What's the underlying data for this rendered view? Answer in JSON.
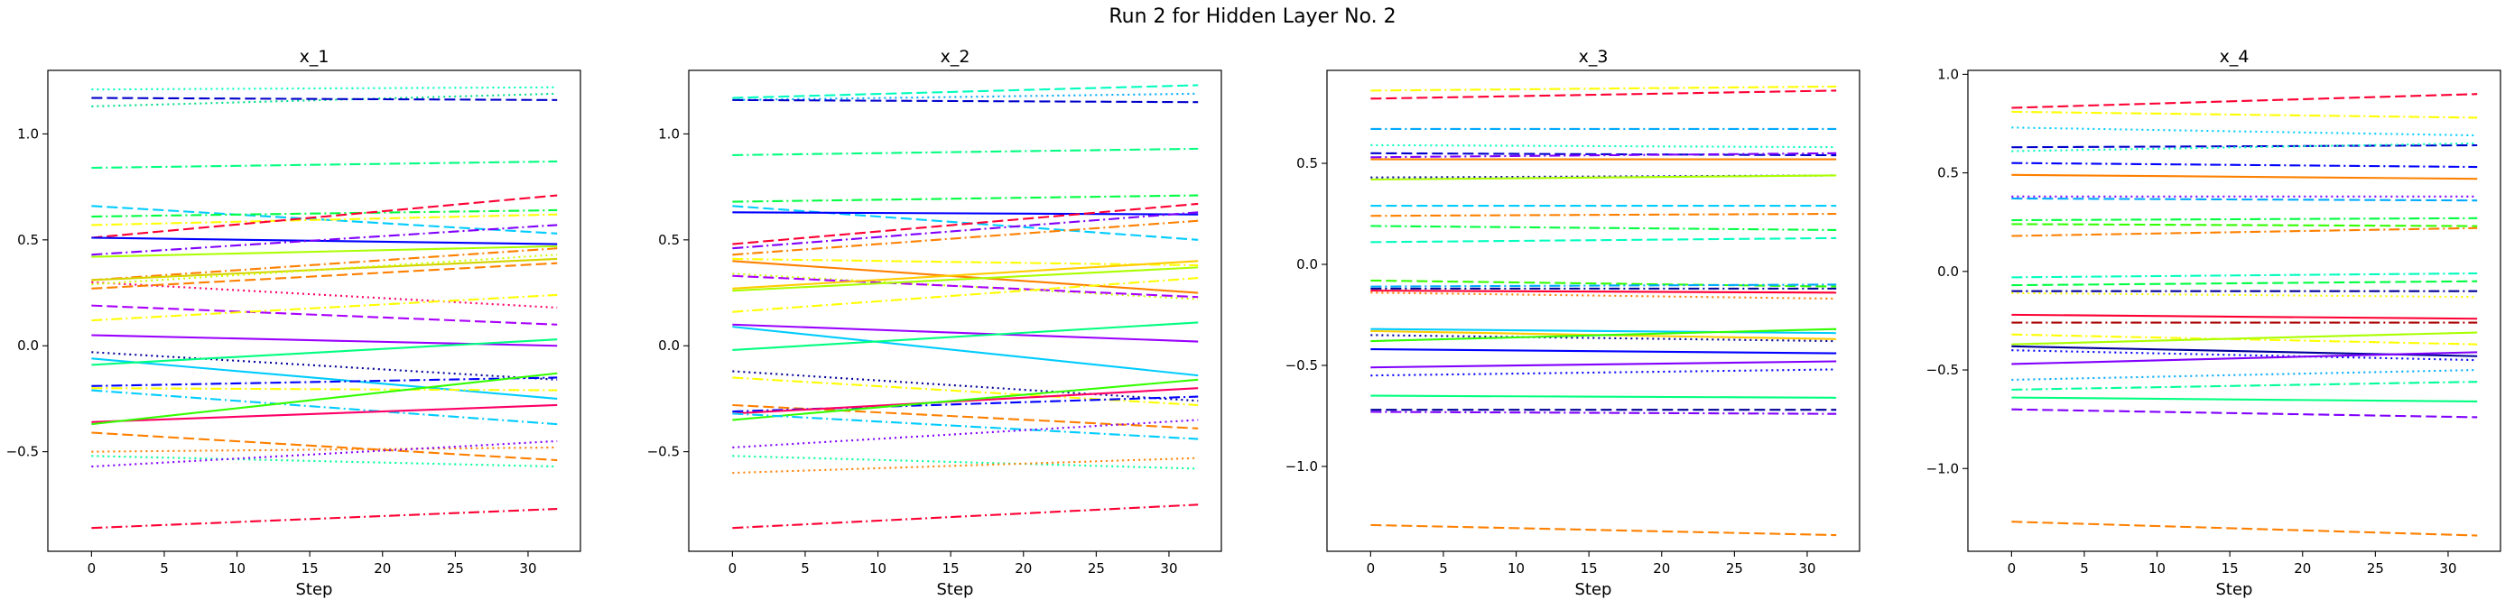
{
  "suptitle": "Run 2 for Hidden Layer No. 2",
  "chart_data": [
    {
      "type": "line",
      "title": "x_1",
      "xlabel": "Step",
      "ylabel": "",
      "xlim": [
        -3,
        33.6
      ],
      "ylim": [
        -0.97,
        1.3
      ],
      "xticks": [
        0,
        5,
        10,
        15,
        20,
        25,
        30
      ],
      "yticks": [
        -0.5,
        0.0,
        0.5,
        1.0
      ],
      "ytick_labels": [
        "−0.5",
        "0.0",
        "0.5",
        "1.0"
      ],
      "grid": false,
      "x_range": [
        0,
        32
      ],
      "series": [
        {
          "color": "#00ffbf",
          "dash": "dot",
          "start": 1.21,
          "end": 1.22
        },
        {
          "color": "#00dd88",
          "dash": "dot",
          "start": 1.13,
          "end": 1.19
        },
        {
          "color": "#0000cc",
          "dash": "dash",
          "start": 1.17,
          "end": 1.16
        },
        {
          "color": "#00ff7f",
          "dash": "dashdot",
          "start": 0.84,
          "end": 0.87
        },
        {
          "color": "#00ccff",
          "dash": "dash",
          "start": 0.66,
          "end": 0.53
        },
        {
          "color": "#00ff40",
          "dash": "dashdot",
          "start": 0.61,
          "end": 0.64
        },
        {
          "color": "#ffff00",
          "dash": "dashdot",
          "start": 0.57,
          "end": 0.62
        },
        {
          "color": "#ff0033",
          "dash": "dash",
          "start": 0.51,
          "end": 0.71
        },
        {
          "color": "#0000ff",
          "dash": "solid",
          "start": 0.51,
          "end": 0.48
        },
        {
          "color": "#8000ff",
          "dash": "dashdot",
          "start": 0.43,
          "end": 0.57
        },
        {
          "color": "#aaff00",
          "dash": "solid",
          "start": 0.42,
          "end": 0.47
        },
        {
          "color": "#ff8000",
          "dash": "dashdot",
          "start": 0.31,
          "end": 0.46
        },
        {
          "color": "#d4d400",
          "dash": "solid",
          "start": 0.31,
          "end": 0.41
        },
        {
          "color": "#ff0066",
          "dash": "dot",
          "start": 0.3,
          "end": 0.18
        },
        {
          "color": "#ccff00",
          "dash": "dot",
          "start": 0.29,
          "end": 0.43
        },
        {
          "color": "#ff8000",
          "dash": "dash",
          "start": 0.27,
          "end": 0.39
        },
        {
          "color": "#aa00ff",
          "dash": "dash",
          "start": 0.19,
          "end": 0.1
        },
        {
          "color": "#ffff00",
          "dash": "dashdot",
          "start": 0.12,
          "end": 0.24
        },
        {
          "color": "#9900ff",
          "dash": "solid",
          "start": 0.05,
          "end": 0.0
        },
        {
          "color": "#000099",
          "dash": "dot",
          "start": -0.03,
          "end": -0.16
        },
        {
          "color": "#00ccff",
          "dash": "solid",
          "start": -0.06,
          "end": -0.25
        },
        {
          "color": "#00ff7f",
          "dash": "solid",
          "start": -0.09,
          "end": 0.03
        },
        {
          "color": "#0000ff",
          "dash": "dashdot",
          "start": -0.19,
          "end": -0.15
        },
        {
          "color": "#ffff00",
          "dash": "dashdot",
          "start": -0.2,
          "end": -0.21
        },
        {
          "color": "#00ccff",
          "dash": "dashdot",
          "start": -0.21,
          "end": -0.37
        },
        {
          "color": "#ff0066",
          "dash": "solid",
          "start": -0.36,
          "end": -0.28
        },
        {
          "color": "#33ff00",
          "dash": "solid",
          "start": -0.37,
          "end": -0.13
        },
        {
          "color": "#ff8000",
          "dash": "dash",
          "start": -0.41,
          "end": -0.54
        },
        {
          "color": "#ff8000",
          "dash": "dot",
          "start": -0.5,
          "end": -0.48
        },
        {
          "color": "#00ff99",
          "dash": "dot",
          "start": -0.52,
          "end": -0.57
        },
        {
          "color": "#8000ff",
          "dash": "dot",
          "start": -0.57,
          "end": -0.45
        },
        {
          "color": "#ff0033",
          "dash": "dashdot",
          "start": -0.86,
          "end": -0.77
        }
      ]
    },
    {
      "type": "line",
      "title": "x_2",
      "xlabel": "Step",
      "ylabel": "",
      "xlim": [
        -3,
        33.6
      ],
      "ylim": [
        -0.97,
        1.3
      ],
      "xticks": [
        0,
        5,
        10,
        15,
        20,
        25,
        30
      ],
      "yticks": [
        -0.5,
        0.0,
        0.5,
        1.0
      ],
      "ytick_labels": [
        "−0.5",
        "0.0",
        "0.5",
        "1.0"
      ],
      "grid": false,
      "x_range": [
        0,
        32
      ],
      "series": [
        {
          "color": "#00ffbf",
          "dash": "dash",
          "start": 1.17,
          "end": 1.23
        },
        {
          "color": "#00aaff",
          "dash": "dot",
          "start": 1.16,
          "end": 1.19
        },
        {
          "color": "#0000cc",
          "dash": "dash",
          "start": 1.16,
          "end": 1.15
        },
        {
          "color": "#00ff7f",
          "dash": "dashdot",
          "start": 0.9,
          "end": 0.93
        },
        {
          "color": "#00ff40",
          "dash": "dashdot",
          "start": 0.68,
          "end": 0.71
        },
        {
          "color": "#00ccff",
          "dash": "dash",
          "start": 0.66,
          "end": 0.5
        },
        {
          "color": "#0000ff",
          "dash": "solid",
          "start": 0.63,
          "end": 0.62
        },
        {
          "color": "#ff0033",
          "dash": "dash",
          "start": 0.48,
          "end": 0.67
        },
        {
          "color": "#8000ff",
          "dash": "dashdot",
          "start": 0.46,
          "end": 0.63
        },
        {
          "color": "#ff8000",
          "dash": "dashdot",
          "start": 0.43,
          "end": 0.59
        },
        {
          "color": "#ffff00",
          "dash": "dashdot",
          "start": 0.41,
          "end": 0.38
        },
        {
          "color": "#ff8000",
          "dash": "solid",
          "start": 0.4,
          "end": 0.25
        },
        {
          "color": "#ccff00",
          "dash": "dot",
          "start": 0.34,
          "end": 0.22
        },
        {
          "color": "#aa00ff",
          "dash": "dash",
          "start": 0.33,
          "end": 0.23
        },
        {
          "color": "#ffcc00",
          "dash": "solid",
          "start": 0.27,
          "end": 0.4
        },
        {
          "color": "#aaff00",
          "dash": "solid",
          "start": 0.26,
          "end": 0.37
        },
        {
          "color": "#ffff00",
          "dash": "dashdot",
          "start": 0.16,
          "end": 0.32
        },
        {
          "color": "#9900ff",
          "dash": "solid",
          "start": 0.1,
          "end": 0.02
        },
        {
          "color": "#00ccff",
          "dash": "solid",
          "start": 0.09,
          "end": -0.14
        },
        {
          "color": "#00ff7f",
          "dash": "solid",
          "start": -0.02,
          "end": 0.11
        },
        {
          "color": "#000099",
          "dash": "dot",
          "start": -0.12,
          "end": -0.26
        },
        {
          "color": "#ffff00",
          "dash": "dashdot",
          "start": -0.15,
          "end": -0.28
        },
        {
          "color": "#ff8000",
          "dash": "dash",
          "start": -0.28,
          "end": -0.39
        },
        {
          "color": "#0000ff",
          "dash": "dashdot",
          "start": -0.31,
          "end": -0.24
        },
        {
          "color": "#ff0066",
          "dash": "solid",
          "start": -0.32,
          "end": -0.2
        },
        {
          "color": "#33ff00",
          "dash": "solid",
          "start": -0.35,
          "end": -0.16
        },
        {
          "color": "#00ccff",
          "dash": "dashdot",
          "start": -0.32,
          "end": -0.44
        },
        {
          "color": "#8000ff",
          "dash": "dot",
          "start": -0.48,
          "end": -0.35
        },
        {
          "color": "#00ff99",
          "dash": "dot",
          "start": -0.52,
          "end": -0.58
        },
        {
          "color": "#ff8000",
          "dash": "dot",
          "start": -0.6,
          "end": -0.53
        },
        {
          "color": "#ff0033",
          "dash": "dashdot",
          "start": -0.86,
          "end": -0.75
        }
      ]
    },
    {
      "type": "line",
      "title": "x_3",
      "xlabel": "Step",
      "ylabel": "",
      "xlim": [
        -3,
        33.6
      ],
      "ylim": [
        -1.42,
        0.96
      ],
      "xticks": [
        0,
        5,
        10,
        15,
        20,
        25,
        30
      ],
      "yticks": [
        -1.0,
        -0.5,
        0.0,
        0.5
      ],
      "ytick_labels": [
        "−1.0",
        "−0.5",
        "0.0",
        "0.5"
      ],
      "grid": false,
      "x_range": [
        0,
        32
      ],
      "series": [
        {
          "color": "#ffff00",
          "dash": "dashdot",
          "start": 0.86,
          "end": 0.88
        },
        {
          "color": "#ff0033",
          "dash": "dash",
          "start": 0.82,
          "end": 0.86
        },
        {
          "color": "#00aaff",
          "dash": "dashdot",
          "start": 0.67,
          "end": 0.67
        },
        {
          "color": "#00ffbf",
          "dash": "dot",
          "start": 0.59,
          "end": 0.58
        },
        {
          "color": "#0000cc",
          "dash": "dash",
          "start": 0.55,
          "end": 0.54
        },
        {
          "color": "#8000ff",
          "dash": "dashdot",
          "start": 0.53,
          "end": 0.55
        },
        {
          "color": "#ff8000",
          "dash": "solid",
          "start": 0.52,
          "end": 0.52
        },
        {
          "color": "#000099",
          "dash": "dot",
          "start": 0.43,
          "end": 0.44
        },
        {
          "color": "#aaff00",
          "dash": "solid",
          "start": 0.42,
          "end": 0.44
        },
        {
          "color": "#00ccff",
          "dash": "dash",
          "start": 0.29,
          "end": 0.29
        },
        {
          "color": "#ff8000",
          "dash": "dashdot",
          "start": 0.24,
          "end": 0.25
        },
        {
          "color": "#00ff40",
          "dash": "dashdot",
          "start": 0.19,
          "end": 0.17
        },
        {
          "color": "#00ffbf",
          "dash": "dash",
          "start": 0.11,
          "end": 0.13
        },
        {
          "color": "#33ff00",
          "dash": "dash",
          "start": -0.08,
          "end": -0.11
        },
        {
          "color": "#00aaff",
          "dash": "dashdot",
          "start": -0.11,
          "end": -0.1
        },
        {
          "color": "#000099",
          "dash": "dashdot",
          "start": -0.12,
          "end": -0.12
        },
        {
          "color": "#ff0033",
          "dash": "solid",
          "start": -0.13,
          "end": -0.14
        },
        {
          "color": "#ff8000",
          "dash": "dot",
          "start": -0.14,
          "end": -0.17
        },
        {
          "color": "#00ccff",
          "dash": "solid",
          "start": -0.32,
          "end": -0.34
        },
        {
          "color": "#ffcc00",
          "dash": "solid",
          "start": -0.33,
          "end": -0.37
        },
        {
          "color": "#000099",
          "dash": "dot",
          "start": -0.35,
          "end": -0.38
        },
        {
          "color": "#33ff00",
          "dash": "solid",
          "start": -0.38,
          "end": -0.32
        },
        {
          "color": "#0000ff",
          "dash": "solid",
          "start": -0.42,
          "end": -0.44
        },
        {
          "color": "#8000ff",
          "dash": "solid",
          "start": -0.51,
          "end": -0.48
        },
        {
          "color": "#0000ff",
          "dash": "dot",
          "start": -0.55,
          "end": -0.52
        },
        {
          "color": "#00ff7f",
          "dash": "solid",
          "start": -0.65,
          "end": -0.66
        },
        {
          "color": "#000099",
          "dash": "dash",
          "start": -0.72,
          "end": -0.72
        },
        {
          "color": "#8000ff",
          "dash": "dashdot",
          "start": -0.73,
          "end": -0.74
        },
        {
          "color": "#ff8000",
          "dash": "dash",
          "start": -1.29,
          "end": -1.34
        }
      ]
    },
    {
      "type": "line",
      "title": "x_4",
      "xlabel": "Step",
      "ylabel": "",
      "xlim": [
        -3,
        33.6
      ],
      "ylim": [
        -1.42,
        1.02
      ],
      "xticks": [
        0,
        5,
        10,
        15,
        20,
        25,
        30
      ],
      "yticks": [
        -1.0,
        -0.5,
        0.0,
        0.5,
        1.0
      ],
      "ytick_labels": [
        "−1.0",
        "−0.5",
        "0.0",
        "0.5",
        "1.0"
      ],
      "grid": false,
      "x_range": [
        0,
        32
      ],
      "series": [
        {
          "color": "#ff0033",
          "dash": "dash",
          "start": 0.83,
          "end": 0.9
        },
        {
          "color": "#ffff00",
          "dash": "dashdot",
          "start": 0.81,
          "end": 0.78
        },
        {
          "color": "#00ccff",
          "dash": "dot",
          "start": 0.73,
          "end": 0.69
        },
        {
          "color": "#0000cc",
          "dash": "dash",
          "start": 0.63,
          "end": 0.64
        },
        {
          "color": "#00ffbf",
          "dash": "dot",
          "start": 0.61,
          "end": 0.65
        },
        {
          "color": "#0000ff",
          "dash": "dashdot",
          "start": 0.55,
          "end": 0.53
        },
        {
          "color": "#ff8000",
          "dash": "solid",
          "start": 0.49,
          "end": 0.47
        },
        {
          "color": "#00aaff",
          "dash": "dash",
          "start": 0.37,
          "end": 0.36
        },
        {
          "color": "#8000ff",
          "dash": "dot",
          "start": 0.38,
          "end": 0.38
        },
        {
          "color": "#00ff40",
          "dash": "dashdot",
          "start": 0.26,
          "end": 0.27
        },
        {
          "color": "#33ff00",
          "dash": "dash",
          "start": 0.24,
          "end": 0.23
        },
        {
          "color": "#ff8000",
          "dash": "dashdot",
          "start": 0.18,
          "end": 0.22
        },
        {
          "color": "#00ffbf",
          "dash": "dashdot",
          "start": -0.03,
          "end": -0.01
        },
        {
          "color": "#00ff40",
          "dash": "dash",
          "start": -0.07,
          "end": -0.05
        },
        {
          "color": "#000099",
          "dash": "dashdot",
          "start": -0.1,
          "end": -0.1
        },
        {
          "color": "#ffff00",
          "dash": "dot",
          "start": -0.11,
          "end": -0.13
        },
        {
          "color": "#ff0033",
          "dash": "solid",
          "start": -0.22,
          "end": -0.24
        },
        {
          "color": "#aa0000",
          "dash": "dashdot",
          "start": -0.26,
          "end": -0.26
        },
        {
          "color": "#ffff00",
          "dash": "dashdot",
          "start": -0.32,
          "end": -0.37
        },
        {
          "color": "#aaff00",
          "dash": "solid",
          "start": -0.37,
          "end": -0.31
        },
        {
          "color": "#000099",
          "dash": "solid",
          "start": -0.38,
          "end": -0.43
        },
        {
          "color": "#0000ff",
          "dash": "dot",
          "start": -0.4,
          "end": -0.45
        },
        {
          "color": "#8000ff",
          "dash": "solid",
          "start": -0.47,
          "end": -0.41
        },
        {
          "color": "#00aaff",
          "dash": "dot",
          "start": -0.55,
          "end": -0.5
        },
        {
          "color": "#00ff99",
          "dash": "dashdot",
          "start": -0.6,
          "end": -0.56
        },
        {
          "color": "#00ff7f",
          "dash": "solid",
          "start": -0.64,
          "end": -0.66
        },
        {
          "color": "#8000ff",
          "dash": "dash",
          "start": -0.7,
          "end": -0.74
        },
        {
          "color": "#ff8000",
          "dash": "dash",
          "start": -1.27,
          "end": -1.34
        }
      ]
    }
  ]
}
